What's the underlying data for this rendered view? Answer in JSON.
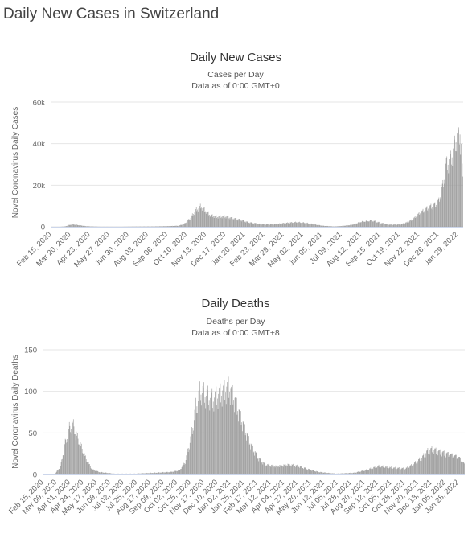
{
  "page": {
    "title": "Daily New Cases in Switzerland"
  },
  "chart_data": [
    {
      "type": "bar",
      "title": "Daily New Cases",
      "subtitle_1": "Cases per Day",
      "subtitle_2": "Data as of 0:00 GMT+0",
      "ylabel": "Novel Coronavirus Daily Cases",
      "ylim": [
        0,
        60000
      ],
      "yticks": [
        0,
        20000,
        40000,
        60000
      ],
      "ytick_labels": [
        "0",
        "20k",
        "40k",
        "60k"
      ],
      "bar_color": "#999999",
      "grid": true,
      "xtick_labels": [
        "Feb 15, 2020",
        "Mar 20, 2020",
        "Apr 23, 2020",
        "May 27, 2020",
        "Jun 30, 2020",
        "Aug 03, 2020",
        "Sep 06, 2020",
        "Oct 10, 2020",
        "Nov 13, 2020",
        "Dec 17, 2020",
        "Jan 20, 2021",
        "Feb 23, 2021",
        "Mar 29, 2021",
        "May 02, 2021",
        "Jun 05, 2021",
        "Jul 09, 2021",
        "Aug 12, 2021",
        "Sep 15, 2021",
        "Oct 19, 2021",
        "Nov 22, 2021",
        "Dec 26, 2021",
        "Jan 29, 2022"
      ],
      "x_start": "Feb 15, 2020",
      "x_end": "Feb 06, 2022",
      "series": [
        {
          "values_at_dates": [
            [
              "Feb 15, 2020",
              0
            ],
            [
              "Mar 01, 2020",
              5
            ],
            [
              "Mar 10, 2020",
              200
            ],
            [
              "Mar 16, 2020",
              800
            ],
            [
              "Mar 22, 2020",
              1200
            ],
            [
              "Mar 28, 2020",
              1000
            ],
            [
              "Apr 05, 2020",
              700
            ],
            [
              "Apr 15, 2020",
              300
            ],
            [
              "Apr 25, 2020",
              150
            ],
            [
              "May 10, 2020",
              40
            ],
            [
              "Jun 15, 2020",
              25
            ],
            [
              "Jul 10, 2020",
              100
            ],
            [
              "Aug 10, 2020",
              150
            ],
            [
              "Sep 06, 2020",
              300
            ],
            [
              "Sep 25, 2020",
              500
            ],
            [
              "Oct 05, 2020",
              1500
            ],
            [
              "Oct 15, 2020",
              4000
            ],
            [
              "Oct 25, 2020",
              8000
            ],
            [
              "Nov 03, 2020",
              9800
            ],
            [
              "Nov 10, 2020",
              8000
            ],
            [
              "Nov 20, 2020",
              5500
            ],
            [
              "Dec 01, 2020",
              4800
            ],
            [
              "Dec 15, 2020",
              5000
            ],
            [
              "Dec 28, 2020",
              4200
            ],
            [
              "Jan 10, 2021",
              3500
            ],
            [
              "Jan 25, 2021",
              2200
            ],
            [
              "Feb 10, 2021",
              1500
            ],
            [
              "Feb 28, 2021",
              1100
            ],
            [
              "Mar 15, 2021",
              1300
            ],
            [
              "Apr 01, 2021",
              1800
            ],
            [
              "Apr 20, 2021",
              2200
            ],
            [
              "May 05, 2021",
              1900
            ],
            [
              "May 20, 2021",
              1200
            ],
            [
              "Jun 05, 2021",
              500
            ],
            [
              "Jun 25, 2021",
              150
            ],
            [
              "Jul 09, 2021",
              400
            ],
            [
              "Jul 25, 2021",
              900
            ],
            [
              "Aug 12, 2021",
              2500
            ],
            [
              "Aug 30, 2021",
              3000
            ],
            [
              "Sep 15, 2021",
              1800
            ],
            [
              "Oct 01, 2021",
              1000
            ],
            [
              "Oct 19, 2021",
              1100
            ],
            [
              "Nov 01, 2021",
              2200
            ],
            [
              "Nov 10, 2021",
              3500
            ],
            [
              "Nov 22, 2021",
              6500
            ],
            [
              "Dec 01, 2021",
              8000
            ],
            [
              "Dec 10, 2021",
              9500
            ],
            [
              "Dec 20, 2021",
              10500
            ],
            [
              "Dec 26, 2021",
              12500
            ],
            [
              "Jan 02, 2022",
              20000
            ],
            [
              "Jan 08, 2022",
              30000
            ],
            [
              "Jan 15, 2022",
              32000
            ],
            [
              "Jan 22, 2022",
              38000
            ],
            [
              "Jan 26, 2022",
              44000
            ],
            [
              "Jan 29, 2022",
              42000
            ],
            [
              "Feb 01, 2022",
              46000
            ],
            [
              "Feb 03, 2022",
              38000
            ],
            [
              "Feb 06, 2022",
              22000
            ]
          ]
        }
      ]
    },
    {
      "type": "bar",
      "title": "Daily Deaths",
      "subtitle_1": "Deaths per Day",
      "subtitle_2": "Data as of 0:00 GMT+8",
      "ylabel": "Novel Coronavirus Daily Deaths",
      "ylim": [
        0,
        150
      ],
      "yticks": [
        0,
        50,
        100,
        150
      ],
      "ytick_labels": [
        "0",
        "50",
        "100",
        "150"
      ],
      "bar_color": "#999999",
      "grid": true,
      "xtick_labels": [
        "Feb 15, 2020",
        "Mar 09, 2020",
        "Apr 01, 2020",
        "Apr 24, 2020",
        "May 17, 2020",
        "Jun 09, 2020",
        "Jul 02, 2020",
        "Jul 25, 2020",
        "Aug 17, 2020",
        "Sep 09, 2020",
        "Oct 02, 2020",
        "Oct 25, 2020",
        "Nov 17, 2020",
        "Dec 10, 2020",
        "Jan 02, 2021",
        "Jan 25, 2021",
        "Feb 17, 2021",
        "Mar 12, 2021",
        "Apr 04, 2021",
        "Apr 27, 2021",
        "May 20, 2021",
        "Jun 12, 2021",
        "Jul 05, 2021",
        "Jul 28, 2021",
        "Aug 20, 2021",
        "Sep 12, 2021",
        "Oct 05, 2021",
        "Oct 28, 2021",
        "Nov 20, 2021",
        "Dec 13, 2021",
        "Jan 05, 2022",
        "Jan 28, 2022"
      ],
      "x_start": "Feb 15, 2020",
      "x_end": "Feb 06, 2022",
      "series": [
        {
          "values_at_dates": [
            [
              "Feb 15, 2020",
              0
            ],
            [
              "Mar 05, 2020",
              0
            ],
            [
              "Mar 15, 2020",
              10
            ],
            [
              "Mar 22, 2020",
              35
            ],
            [
              "Mar 30, 2020",
              55
            ],
            [
              "Apr 05, 2020",
              60
            ],
            [
              "Apr 12, 2020",
              45
            ],
            [
              "Apr 20, 2020",
              32
            ],
            [
              "Apr 28, 2020",
              18
            ],
            [
              "May 08, 2020",
              6
            ],
            [
              "May 20, 2020",
              3
            ],
            [
              "Jun 15, 2020",
              1
            ],
            [
              "Jul 20, 2020",
              1
            ],
            [
              "Aug 20, 2020",
              2
            ],
            [
              "Sep 20, 2020",
              3
            ],
            [
              "Oct 05, 2020",
              5
            ],
            [
              "Oct 15, 2020",
              15
            ],
            [
              "Oct 25, 2020",
              45
            ],
            [
              "Nov 02, 2020",
              80
            ],
            [
              "Nov 10, 2020",
              100
            ],
            [
              "Nov 20, 2020",
              95
            ],
            [
              "Dec 01, 2020",
              90
            ],
            [
              "Dec 10, 2020",
              95
            ],
            [
              "Dec 20, 2020",
              100
            ],
            [
              "Dec 28, 2020",
              105
            ],
            [
              "Jan 05, 2021",
              95
            ],
            [
              "Jan 15, 2021",
              75
            ],
            [
              "Jan 25, 2021",
              55
            ],
            [
              "Feb 05, 2021",
              35
            ],
            [
              "Feb 17, 2021",
              20
            ],
            [
              "Mar 01, 2021",
              12
            ],
            [
              "Mar 20, 2021",
              10
            ],
            [
              "Apr 10, 2021",
              12
            ],
            [
              "Apr 27, 2021",
              10
            ],
            [
              "May 15, 2021",
              6
            ],
            [
              "Jun 01, 2021",
              3
            ],
            [
              "Jul 01, 2021",
              1
            ],
            [
              "Aug 01, 2021",
              2
            ],
            [
              "Aug 20, 2021",
              5
            ],
            [
              "Sep 12, 2021",
              10
            ],
            [
              "Oct 05, 2021",
              8
            ],
            [
              "Oct 28, 2021",
              7
            ],
            [
              "Nov 10, 2021",
              12
            ],
            [
              "Nov 25, 2021",
              20
            ],
            [
              "Dec 05, 2021",
              28
            ],
            [
              "Dec 13, 2021",
              30
            ],
            [
              "Dec 25, 2021",
              27
            ],
            [
              "Jan 05, 2022",
              25
            ],
            [
              "Jan 20, 2022",
              22
            ],
            [
              "Jan 28, 2022",
              20
            ],
            [
              "Feb 06, 2022",
              12
            ]
          ]
        }
      ]
    }
  ]
}
